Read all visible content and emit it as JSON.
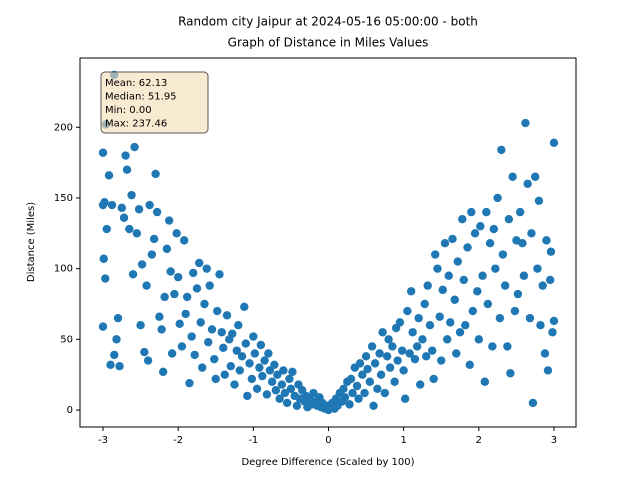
{
  "chart_data": {
    "type": "scatter",
    "title": [
      "Random city Jaipur at 2024-05-16 05:00:00  - both",
      "Graph of Distance in Miles Values"
    ],
    "xlabel": "Degree Difference (Scaled by 100)",
    "ylabel": "Distance (Miles)",
    "annotations": [
      "Mean: 62.13",
      "Median: 51.95",
      "Min: 0.00",
      "Max: 237.46"
    ],
    "color": "#1f77b4",
    "xlim": [
      -3.306,
      3.293
    ],
    "ylim": [
      -12,
      249
    ],
    "xticks": [
      -3,
      -2,
      -1,
      0,
      1,
      2,
      3
    ],
    "yticks": [
      0,
      50,
      100,
      150,
      200
    ],
    "x": [
      -3.0,
      -2.98,
      -2.95,
      -2.92,
      -2.88,
      -2.85,
      -2.96,
      -3.0,
      -2.99,
      -2.97,
      -3.0,
      -2.9,
      -2.85,
      -2.8,
      -2.82,
      -2.78,
      -2.75,
      -2.72,
      -2.7,
      -2.68,
      -2.65,
      -2.62,
      -2.6,
      -2.58,
      -2.55,
      -2.52,
      -2.5,
      -2.48,
      -2.45,
      -2.42,
      -2.4,
      -2.38,
      -2.35,
      -2.32,
      -2.3,
      -2.28,
      -2.25,
      -2.22,
      -2.2,
      -2.18,
      -2.15,
      -2.12,
      -2.1,
      -2.08,
      -2.05,
      -2.02,
      -2.0,
      -1.98,
      -1.95,
      -1.92,
      -1.9,
      -1.88,
      -1.85,
      -1.82,
      -1.8,
      -1.78,
      -1.75,
      -1.72,
      -1.7,
      -1.68,
      -1.65,
      -1.62,
      -1.6,
      -1.58,
      -1.55,
      -1.52,
      -1.5,
      -1.48,
      -1.45,
      -1.42,
      -1.4,
      -1.38,
      -1.35,
      -1.32,
      -1.3,
      -1.28,
      -1.25,
      -1.22,
      -1.2,
      -1.18,
      -1.15,
      -1.12,
      -1.1,
      -1.08,
      -1.05,
      -1.02,
      -1.0,
      -0.98,
      -0.95,
      -0.92,
      -0.9,
      -0.88,
      -0.85,
      -0.82,
      -0.8,
      -0.78,
      -0.75,
      -0.72,
      -0.7,
      -0.68,
      -0.65,
      -0.62,
      -0.6,
      -0.58,
      -0.55,
      -0.52,
      -0.5,
      -0.48,
      -0.45,
      -0.42,
      -0.4,
      -0.38,
      -0.35,
      -0.32,
      -0.3,
      -0.28,
      -0.25,
      -0.22,
      -0.2,
      -0.18,
      -0.15,
      -0.12,
      -0.1,
      -0.08,
      -0.05,
      -0.02,
      0,
      0.02,
      0.05,
      0.08,
      0.1,
      0.12,
      0.15,
      0.18,
      0.2,
      0.22,
      0.25,
      0.28,
      0.3,
      0.32,
      0.35,
      0.38,
      0.4,
      0.42,
      0.45,
      0.48,
      0.5,
      0.52,
      0.55,
      0.58,
      0.6,
      0.62,
      0.65,
      0.68,
      0.7,
      0.72,
      0.75,
      0.78,
      0.8,
      0.82,
      0.85,
      0.88,
      0.9,
      0.92,
      0.95,
      0.98,
      1.0,
      1.02,
      1.05,
      1.08,
      1.1,
      1.12,
      1.15,
      1.18,
      1.2,
      1.22,
      1.25,
      1.28,
      1.3,
      1.32,
      1.35,
      1.38,
      1.4,
      1.42,
      1.45,
      1.48,
      1.5,
      1.52,
      1.55,
      1.58,
      1.6,
      1.62,
      1.65,
      1.68,
      1.7,
      1.72,
      1.75,
      1.78,
      1.8,
      1.82,
      1.85,
      1.88,
      1.9,
      1.92,
      1.95,
      1.98,
      2.0,
      2.02,
      2.05,
      2.08,
      2.1,
      2.12,
      2.15,
      2.18,
      2.2,
      2.22,
      2.25,
      2.28,
      2.3,
      2.32,
      2.35,
      2.38,
      2.4,
      2.42,
      2.45,
      2.48,
      2.5,
      2.52,
      2.55,
      2.58,
      2.6,
      2.62,
      2.65,
      2.68,
      2.7,
      2.72,
      2.75,
      2.78,
      2.8,
      2.82,
      2.85,
      2.88,
      2.9,
      2.92,
      2.95,
      2.98,
      3.0,
      3.0,
      2.96
    ],
    "values": [
      145,
      147,
      128,
      166,
      145,
      237,
      202,
      182,
      107,
      93,
      59,
      32,
      39,
      65,
      50,
      31,
      143,
      136,
      180,
      170,
      128,
      152,
      96,
      186,
      125,
      142,
      60,
      103,
      41,
      88,
      35,
      145,
      110,
      121,
      167,
      140,
      66,
      57,
      27,
      80,
      114,
      134,
      98,
      40,
      82,
      125,
      94,
      61,
      45,
      120,
      68,
      80,
      19,
      52,
      97,
      39,
      86,
      104,
      62,
      30,
      75,
      100,
      48,
      88,
      57,
      36,
      22,
      70,
      96,
      55,
      44,
      25,
      67,
      50,
      31,
      54,
      18,
      42,
      60,
      28,
      38,
      73,
      47,
      10,
      33,
      22,
      52,
      40,
      15,
      30,
      46,
      24,
      35,
      11,
      40,
      28,
      20,
      32,
      14,
      25,
      8,
      18,
      28,
      12,
      5,
      22,
      15,
      27,
      10,
      3,
      18,
      8,
      14,
      6,
      10,
      2,
      8,
      4,
      12,
      6,
      3,
      9,
      2,
      5,
      1,
      3,
      0,
      2,
      5,
      1,
      8,
      3,
      12,
      6,
      15,
      9,
      20,
      4,
      22,
      12,
      30,
      17,
      8,
      33,
      25,
      12,
      38,
      29,
      20,
      45,
      3,
      33,
      15,
      40,
      25,
      55,
      12,
      38,
      50,
      30,
      45,
      20,
      58,
      35,
      62,
      42,
      28,
      8,
      70,
      40,
      84,
      55,
      36,
      45,
      65,
      18,
      50,
      75,
      38,
      88,
      60,
      42,
      22,
      110,
      100,
      66,
      35,
      85,
      118,
      50,
      95,
      62,
      121,
      78,
      40,
      105,
      55,
      135,
      92,
      60,
      115,
      32,
      140,
      70,
      125,
      84,
      50,
      130,
      95,
      20,
      140,
      75,
      118,
      45,
      128,
      100,
      150,
      65,
      184,
      110,
      88,
      45,
      135,
      26,
      165,
      70,
      120,
      82,
      140,
      118,
      95,
      203,
      160,
      65,
      125,
      5,
      165,
      100,
      148,
      60,
      88,
      40,
      120,
      28,
      92,
      55,
      189,
      63,
      112
    ]
  }
}
